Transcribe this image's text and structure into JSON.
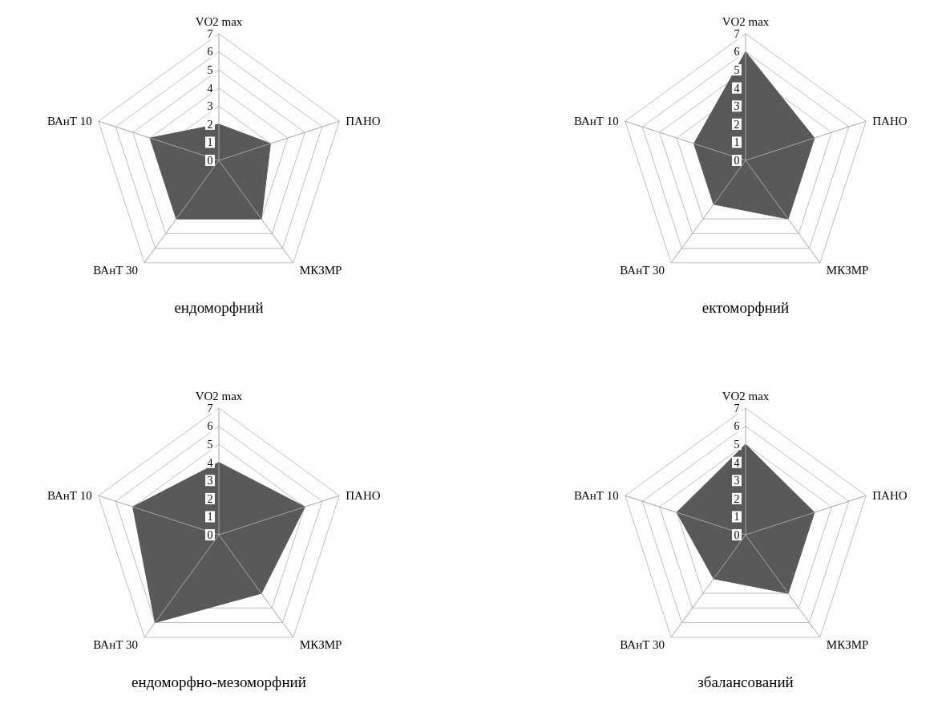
{
  "chart_data": [
    {
      "type": "radar",
      "title": "ендоморфний",
      "categories": [
        "VO2 max",
        "ПАНО",
        "МКЗМР",
        "ВАнТ 30",
        "ВАнТ 10"
      ],
      "ylim": [
        0,
        7
      ],
      "yticks": [
        0,
        1,
        2,
        3,
        4,
        5,
        6,
        7
      ],
      "grid": true,
      "series": [
        {
          "color": "#595959",
          "values": [
            2,
            3,
            4,
            4,
            4
          ]
        }
      ]
    },
    {
      "type": "radar",
      "title": "ектоморфний",
      "categories": [
        "VO2 max",
        "ПАНО",
        "МКЗМР",
        "ВАнТ 30",
        "ВАнТ 10"
      ],
      "ylim": [
        0,
        7
      ],
      "yticks": [
        0,
        1,
        2,
        3,
        4,
        5,
        6,
        7
      ],
      "grid": true,
      "series": [
        {
          "color": "#595959",
          "values": [
            6,
            4,
            4,
            3,
            3
          ]
        }
      ]
    },
    {
      "type": "radar",
      "title": "ендоморфно-мезоморфний",
      "categories": [
        "VO2 max",
        "ПАНО",
        "МКЗМР",
        "ВАнТ 30",
        "ВАнТ 10"
      ],
      "ylim": [
        0,
        7
      ],
      "yticks": [
        0,
        1,
        2,
        3,
        4,
        5,
        6,
        7
      ],
      "grid": true,
      "series": [
        {
          "color": "#595959",
          "values": [
            4,
            5,
            4,
            6,
            5
          ]
        }
      ]
    },
    {
      "type": "radar",
      "title": "збалансований",
      "categories": [
        "VO2 max",
        "ПАНО",
        "МКЗМР",
        "ВАнТ 30",
        "ВАнТ 10"
      ],
      "ylim": [
        0,
        7
      ],
      "yticks": [
        0,
        1,
        2,
        3,
        4,
        5,
        6,
        7
      ],
      "grid": true,
      "series": [
        {
          "color": "#595959",
          "values": [
            5,
            4,
            4,
            3,
            4
          ]
        }
      ]
    }
  ]
}
